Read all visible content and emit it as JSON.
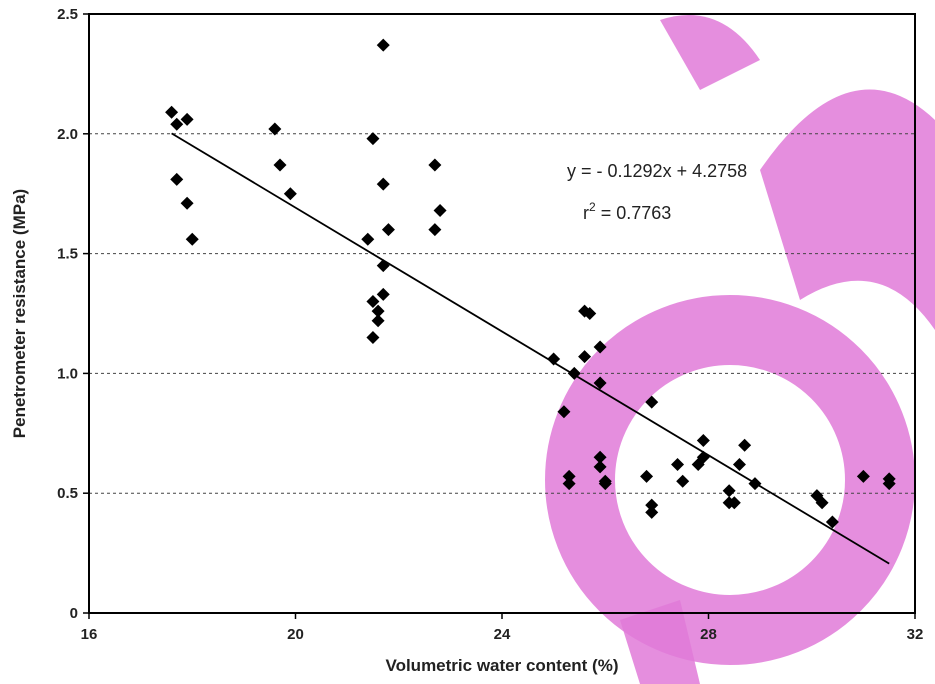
{
  "chart_data": {
    "type": "scatter",
    "xlabel": "Volumetric water content (%)",
    "ylabel": "Penetrometer resistance (MPa)",
    "xlim": [
      16,
      32
    ],
    "ylim": [
      0,
      2.5
    ],
    "x_ticks": [
      16,
      20,
      24,
      28,
      32
    ],
    "x_tick_labels": [
      "16",
      "20",
      "24",
      "28",
      "32"
    ],
    "y_ticks": [
      0,
      0.5,
      1.0,
      1.5,
      2.0,
      2.5
    ],
    "y_tick_labels": [
      "0",
      "0.5",
      "1.0",
      "1.5",
      "2.0",
      "2.5"
    ],
    "grid": "horizontal-dashed",
    "series": [
      {
        "marker": "diamond",
        "color": "#000000",
        "points": [
          [
            17.6,
            2.09
          ],
          [
            17.7,
            2.04
          ],
          [
            17.9,
            2.06
          ],
          [
            17.7,
            1.81
          ],
          [
            17.9,
            1.71
          ],
          [
            18.0,
            1.56
          ],
          [
            19.6,
            2.02
          ],
          [
            19.7,
            1.87
          ],
          [
            19.9,
            1.75
          ],
          [
            21.7,
            2.37
          ],
          [
            21.5,
            1.98
          ],
          [
            21.7,
            1.79
          ],
          [
            21.8,
            1.6
          ],
          [
            21.4,
            1.56
          ],
          [
            21.7,
            1.45
          ],
          [
            21.7,
            1.33
          ],
          [
            21.5,
            1.3
          ],
          [
            21.6,
            1.26
          ],
          [
            21.6,
            1.22
          ],
          [
            21.5,
            1.15
          ],
          [
            22.7,
            1.87
          ],
          [
            22.8,
            1.68
          ],
          [
            22.7,
            1.6
          ],
          [
            25.0,
            1.06
          ],
          [
            25.4,
            1.0
          ],
          [
            25.2,
            0.84
          ],
          [
            25.3,
            0.57
          ],
          [
            25.3,
            0.54
          ],
          [
            25.6,
            1.26
          ],
          [
            25.7,
            1.25
          ],
          [
            25.6,
            1.07
          ],
          [
            25.9,
            1.11
          ],
          [
            25.9,
            0.96
          ],
          [
            25.9,
            0.65
          ],
          [
            25.9,
            0.61
          ],
          [
            26.0,
            0.55
          ],
          [
            26.0,
            0.54
          ],
          [
            26.9,
            0.88
          ],
          [
            26.8,
            0.57
          ],
          [
            26.9,
            0.45
          ],
          [
            26.9,
            0.42
          ],
          [
            27.4,
            0.62
          ],
          [
            27.5,
            0.55
          ],
          [
            27.9,
            0.72
          ],
          [
            27.9,
            0.65
          ],
          [
            27.8,
            0.62
          ],
          [
            28.4,
            0.51
          ],
          [
            28.4,
            0.46
          ],
          [
            28.5,
            0.46
          ],
          [
            28.7,
            0.7
          ],
          [
            28.6,
            0.62
          ],
          [
            28.9,
            0.54
          ],
          [
            30.1,
            0.49
          ],
          [
            30.2,
            0.46
          ],
          [
            30.4,
            0.38
          ],
          [
            31.0,
            0.57
          ],
          [
            31.5,
            0.56
          ],
          [
            31.5,
            0.54
          ]
        ]
      }
    ],
    "trendline": {
      "slope": -0.1292,
      "intercept": 4.2758,
      "x_range": [
        17.6,
        31.5
      ],
      "equation_label": "y = - 0.1292x + 4.2758",
      "r2_prefix": "r",
      "r2_sup": "2",
      "r2_value": " = 0.7763"
    },
    "watermark_color": "#e07ad8"
  }
}
